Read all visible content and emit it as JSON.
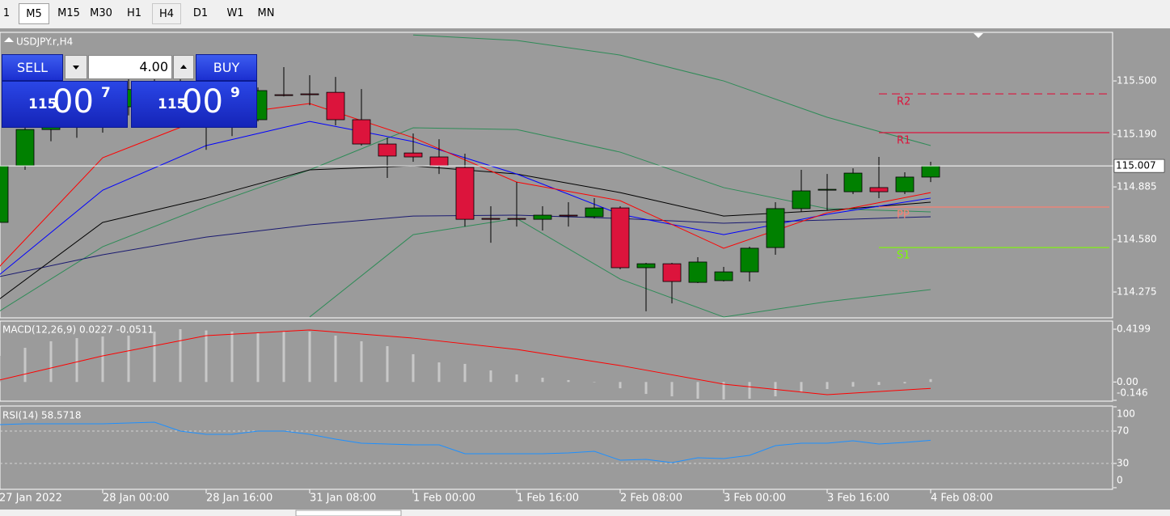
{
  "toolbar": {
    "timeframes": [
      "1",
      "M5",
      "M15",
      "M30",
      "H1",
      "H4",
      "D1",
      "W1",
      "MN"
    ]
  },
  "trade_panel": {
    "sell": "SELL",
    "buy": "BUY",
    "volume": "4.00",
    "bid": {
      "big": "115",
      "figure": "00",
      "pip": "7"
    },
    "ask": {
      "big": "115",
      "figure": "00",
      "pip": "9"
    }
  },
  "chart_data": [
    {
      "type": "candlestick",
      "title": "USDJPY.r,H4",
      "categories": [
        "27 Jan 2022",
        null,
        null,
        null,
        "28 Jan 00:00",
        null,
        null,
        null,
        "28 Jan 16:00",
        null,
        null,
        null,
        "31 Jan 08:00",
        null,
        null,
        null,
        "1 Feb 00:00",
        null,
        null,
        null,
        "1 Feb 16:00",
        null,
        null,
        null,
        "2 Feb 08:00",
        null,
        null,
        null,
        "3 Feb 00:00",
        null,
        null,
        null,
        "3 Feb 16:00",
        null,
        null,
        null,
        "4 Feb 08:00"
      ],
      "open": [
        114.679,
        115.007,
        115.218,
        115.3,
        115.25,
        115.35,
        115.45,
        115.44,
        115.32,
        115.25,
        115.275,
        115.42,
        115.425,
        115.434,
        115.275,
        115.134,
        115.082,
        115.059,
        114.998,
        114.702,
        114.702,
        114.697,
        114.721,
        114.712,
        114.763,
        114.416,
        114.439,
        114.331,
        114.341,
        114.392,
        114.533,
        114.759,
        114.866,
        114.857,
        114.881,
        114.857,
        114.942
      ],
      "high": [
        115.031,
        115.265,
        115.4,
        115.35,
        115.45,
        115.58,
        115.62,
        115.52,
        115.4,
        115.42,
        115.462,
        115.58,
        115.533,
        115.523,
        115.453,
        115.171,
        115.195,
        115.162,
        115.078,
        114.773,
        114.913,
        114.773,
        114.796,
        114.82,
        114.773,
        114.444,
        114.444,
        114.477,
        114.421,
        114.538,
        114.796,
        114.984,
        114.96,
        114.993,
        115.059,
        114.97,
        115.031
      ],
      "low": [
        114.655,
        114.984,
        115.15,
        115.17,
        115.2,
        115.3,
        115.38,
        115.28,
        115.1,
        115.18,
        115.265,
        115.41,
        115.359,
        115.242,
        115.125,
        114.937,
        115.031,
        114.96,
        114.655,
        114.561,
        114.655,
        114.632,
        114.655,
        114.702,
        114.407,
        114.163,
        114.209,
        114.327,
        114.336,
        114.336,
        114.491,
        114.74,
        114.749,
        114.843,
        114.82,
        114.843,
        114.913
      ],
      "close": [
        115.007,
        115.218,
        115.3,
        115.25,
        115.35,
        115.45,
        115.44,
        115.32,
        115.25,
        115.275,
        115.444,
        115.418,
        115.42,
        115.275,
        115.134,
        115.064,
        115.059,
        115.007,
        114.697,
        114.697,
        114.697,
        114.721,
        114.716,
        114.763,
        114.416,
        114.439,
        114.336,
        114.449,
        114.392,
        114.529,
        114.759,
        114.862,
        114.871,
        114.965,
        114.857,
        114.942,
        115.007
      ],
      "up_color": "#008000",
      "down_color": "#dc143c",
      "lines": [
        {
          "color": "#2e8b57",
          "x": [
            16,
            20,
            24,
            28,
            32,
            36
          ],
          "values": [
            115.767,
            115.735,
            115.65,
            115.5,
            115.289,
            115.125
          ]
        },
        {
          "color": "#2e8b57",
          "x": [
            0,
            4,
            8,
            12,
            16,
            20,
            24,
            28,
            32,
            36
          ],
          "values": [
            114.163,
            114.538,
            114.773,
            114.984,
            115.228,
            115.218,
            115.087,
            114.881,
            114.759,
            114.74
          ]
        },
        {
          "color": "#2e8b57",
          "x": [
            12,
            16,
            20,
            24,
            28,
            32,
            36
          ],
          "values": [
            114.13,
            114.608,
            114.702,
            114.35,
            114.13,
            114.219,
            114.289
          ]
        },
        {
          "color": "#191970",
          "x": [
            0,
            4,
            8,
            12,
            16,
            20,
            24,
            28,
            32,
            36
          ],
          "values": [
            114.364,
            114.491,
            114.594,
            114.665,
            114.716,
            114.721,
            114.702,
            114.674,
            114.693,
            114.712
          ]
        },
        {
          "color": "#000000",
          "x": [
            0,
            4,
            8,
            12,
            16,
            20,
            24,
            28,
            32,
            36
          ],
          "values": [
            114.233,
            114.679,
            114.82,
            114.984,
            115.007,
            114.96,
            114.852,
            114.716,
            114.749,
            114.796
          ]
        },
        {
          "color": "#0000ff",
          "x": [
            0,
            4,
            8,
            12,
            16,
            20,
            24,
            28,
            32,
            36
          ],
          "values": [
            114.374,
            114.866,
            115.125,
            115.265,
            115.148,
            114.96,
            114.726,
            114.608,
            114.726,
            114.82
          ]
        },
        {
          "color": "#ff0000",
          "x": [
            0,
            4,
            8,
            12,
            16,
            20,
            24,
            28,
            32,
            36
          ],
          "values": [
            114.421,
            115.054,
            115.289,
            115.369,
            115.171,
            114.913,
            114.805,
            114.529,
            114.735,
            114.852
          ]
        }
      ],
      "levels": [
        {
          "label": "R2",
          "value": 115.425,
          "color": "#dc143c",
          "dashed": true
        },
        {
          "label": "R1",
          "value": 115.2,
          "color": "#dc143c",
          "dashed": false
        },
        {
          "label": "PP",
          "value": 114.768,
          "color": "#fa8072",
          "dashed": false
        },
        {
          "label": "S1",
          "value": 114.533,
          "color": "#7cfc00",
          "dashed": false
        }
      ],
      "current_price": 115.007,
      "ylim": [
        114.125,
        115.782
      ],
      "yticks": [
        {
          "value": 115.5,
          "label": "115.500"
        },
        {
          "value": 115.19,
          "label": "115.190"
        },
        114.885,
        {
          "value": 114.58,
          "label": "114.580"
        },
        114.275
      ]
    },
    {
      "type": "bar",
      "title": "MACD(12,26,9) 0.0227 -0.0511",
      "values": [
        0.208,
        0.272,
        0.324,
        0.349,
        0.362,
        0.369,
        0.401,
        0.4199,
        0.41,
        0.401,
        0.388,
        0.401,
        0.401,
        0.369,
        0.324,
        0.285,
        0.221,
        0.156,
        0.144,
        0.092,
        0.06,
        0.034,
        0.015,
        0.002,
        -0.05,
        -0.095,
        -0.114,
        -0.133,
        -0.139,
        -0.133,
        -0.114,
        -0.082,
        -0.056,
        -0.037,
        -0.024,
        -0.011,
        0.0227
      ],
      "color": "#c8c8c8",
      "signal": {
        "color": "#ff0000",
        "x": [
          0,
          4,
          8,
          12,
          16,
          20,
          24,
          28,
          32,
          36
        ],
        "values": [
          0.015,
          0.208,
          0.369,
          0.414,
          0.349,
          0.259,
          0.131,
          -0.017,
          -0.101,
          -0.0511
        ]
      },
      "ylim": [
        -0.146,
        0.4845
      ],
      "yticks": [
        0.4199,
        {
          "value": 0,
          "label": "0.00"
        },
        -0.146
      ]
    },
    {
      "type": "line",
      "title": "RSI(14) 58.5718",
      "values": [
        78,
        79,
        79,
        79,
        79,
        80,
        81,
        70,
        66,
        66,
        70,
        70,
        66,
        60,
        55,
        54,
        53,
        53,
        42,
        42,
        42,
        42,
        43,
        45,
        34,
        35,
        31,
        37,
        36,
        40,
        52,
        55,
        55,
        58,
        54,
        56,
        58.5718
      ],
      "color": "#1e90ff",
      "levels": [
        70,
        30
      ],
      "ylim": [
        0,
        100
      ],
      "yticks": [
        100,
        70,
        30,
        0
      ]
    }
  ]
}
